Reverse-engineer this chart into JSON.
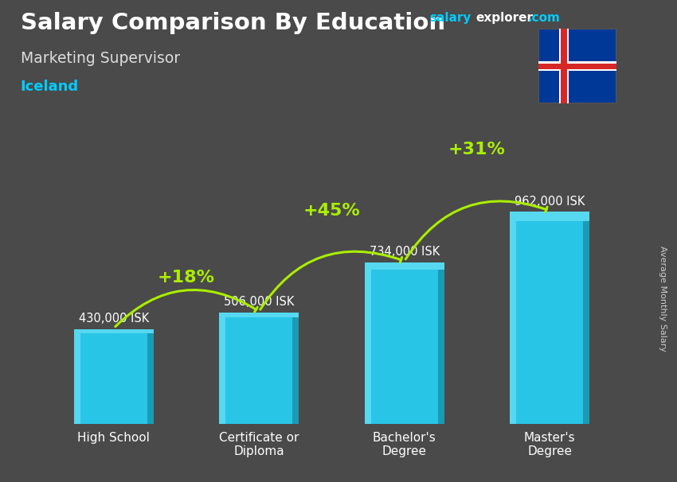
{
  "title": "Salary Comparison By Education",
  "subtitle": "Marketing Supervisor",
  "country": "Iceland",
  "categories": [
    "High School",
    "Certificate or\nDiploma",
    "Bachelor's\nDegree",
    "Master's\nDegree"
  ],
  "values": [
    430000,
    506000,
    734000,
    962000
  ],
  "value_labels": [
    "430,000 ISK",
    "506,000 ISK",
    "734,000 ISK",
    "962,000 ISK"
  ],
  "pct_labels": [
    "+18%",
    "+45%",
    "+31%"
  ],
  "bar_color_main": "#29c5e6",
  "bar_color_light": "#55d8f0",
  "bar_color_dark": "#1a9bb5",
  "background_color": "#4a4a4a",
  "title_color": "#ffffff",
  "subtitle_color": "#dddddd",
  "country_color": "#00ccff",
  "value_label_color": "#ffffff",
  "pct_label_color": "#aaee00",
  "arrow_color": "#aaee00",
  "ylabel_text": "Average Monthly Salary",
  "wm_salary_color": "#00ccff",
  "wm_explorer_color": "#ffffff",
  "wm_com_color": "#00ccff"
}
